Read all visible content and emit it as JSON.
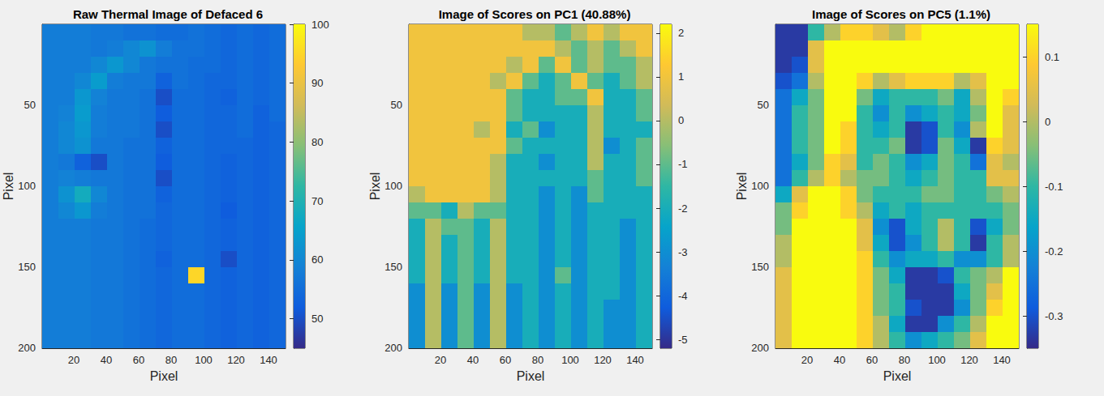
{
  "chart_data": [
    {
      "type": "heatmap",
      "title": "Raw Thermal Image of Defaced 6",
      "xlabel": "Pixel",
      "ylabel": "Pixel",
      "xlim": [
        0.5,
        150.5
      ],
      "xticks": [
        20,
        40,
        60,
        80,
        100,
        120,
        140
      ],
      "ylim": [
        0.5,
        200.5
      ],
      "yticks": [
        50,
        100,
        150,
        200
      ],
      "x": [
        5.5,
        15.5,
        25.5,
        35.5,
        45.5,
        55.5,
        65.5,
        75.5,
        85.5,
        95.5,
        105.5,
        115.5,
        125.5,
        135.5,
        145.5
      ],
      "y": [
        5.5,
        15.5,
        25.5,
        35.5,
        45.5,
        55.5,
        65.5,
        75.5,
        85.5,
        95.5,
        105.5,
        115.5,
        125.5,
        135.5,
        145.5,
        155.5,
        165.5,
        175.5,
        185.5,
        195.5
      ],
      "cells": [
        [
          58,
          58,
          58,
          57,
          57,
          56,
          56,
          55,
          55,
          56,
          55,
          54,
          55,
          54,
          55
        ],
        [
          58,
          58,
          58,
          57,
          58,
          60,
          62,
          58,
          56,
          56,
          55,
          54,
          55,
          54,
          55
        ],
        [
          58,
          58,
          58,
          60,
          63,
          60,
          57,
          56,
          56,
          55,
          55,
          54,
          55,
          54,
          55
        ],
        [
          58,
          58,
          60,
          64,
          58,
          57,
          57,
          53,
          56,
          55,
          54,
          54,
          55,
          54,
          55
        ],
        [
          58,
          58,
          63,
          59,
          57,
          57,
          56,
          50,
          55,
          55,
          54,
          53,
          55,
          54,
          55
        ],
        [
          58,
          59,
          64,
          58,
          57,
          57,
          56,
          52,
          55,
          55,
          54,
          54,
          55,
          53,
          55
        ],
        [
          58,
          60,
          63,
          58,
          57,
          57,
          56,
          50,
          55,
          55,
          54,
          54,
          55,
          53,
          54
        ],
        [
          58,
          60,
          62,
          57,
          57,
          56,
          56,
          53,
          55,
          55,
          54,
          54,
          54,
          53,
          54
        ],
        [
          58,
          57,
          53,
          50,
          57,
          56,
          56,
          52,
          55,
          55,
          54,
          53,
          54,
          53,
          54
        ],
        [
          58,
          59,
          58,
          57,
          57,
          56,
          56,
          50,
          55,
          55,
          54,
          53,
          54,
          53,
          54
        ],
        [
          58,
          62,
          68,
          60,
          57,
          56,
          56,
          53,
          55,
          55,
          54,
          53,
          54,
          53,
          54
        ],
        [
          58,
          60,
          63,
          58,
          57,
          56,
          56,
          54,
          55,
          55,
          54,
          52,
          54,
          53,
          54
        ],
        [
          58,
          58,
          58,
          57,
          57,
          56,
          55,
          54,
          55,
          55,
          54,
          53,
          54,
          53,
          54
        ],
        [
          58,
          58,
          58,
          57,
          57,
          56,
          55,
          54,
          55,
          55,
          54,
          53,
          54,
          53,
          54
        ],
        [
          58,
          58,
          58,
          57,
          57,
          56,
          55,
          53,
          55,
          55,
          54,
          50,
          54,
          53,
          54
        ],
        [
          58,
          58,
          58,
          57,
          57,
          56,
          55,
          54,
          55,
          95,
          54,
          53,
          54,
          53,
          54
        ],
        [
          58,
          58,
          58,
          57,
          57,
          56,
          55,
          54,
          55,
          55,
          54,
          53,
          54,
          53,
          54
        ],
        [
          58,
          58,
          58,
          57,
          57,
          56,
          55,
          54,
          55,
          55,
          54,
          53,
          54,
          53,
          54
        ],
        [
          58,
          58,
          58,
          57,
          57,
          56,
          55,
          54,
          55,
          55,
          54,
          53,
          54,
          53,
          54
        ],
        [
          58,
          58,
          58,
          57,
          57,
          56,
          55,
          54,
          55,
          55,
          54,
          53,
          54,
          53,
          54
        ]
      ],
      "colorbar": {
        "range": [
          45,
          100
        ],
        "ticks": [
          50,
          60,
          70,
          80,
          90,
          100
        ]
      }
    },
    {
      "type": "heatmap",
      "title": "Image of Scores on PC1 (40.88%)",
      "xlabel": "Pixel",
      "ylabel": "Pixel",
      "xlim": [
        0.5,
        150.5
      ],
      "xticks": [
        20,
        40,
        60,
        80,
        100,
        120,
        140
      ],
      "ylim": [
        0.5,
        200.5
      ],
      "yticks": [
        50,
        100,
        150,
        200
      ],
      "x": [
        5.5,
        15.5,
        25.5,
        35.5,
        45.5,
        55.5,
        65.5,
        75.5,
        85.5,
        95.5,
        105.5,
        115.5,
        125.5,
        135.5,
        145.5
      ],
      "y": [
        5.5,
        15.5,
        25.5,
        35.5,
        45.5,
        55.5,
        65.5,
        75.5,
        85.5,
        95.5,
        105.5,
        115.5,
        125.5,
        135.5,
        145.5,
        155.5,
        165.5,
        175.5,
        185.5,
        195.5
      ],
      "cells": [
        [
          1,
          1,
          1,
          1,
          1,
          1,
          1,
          0,
          0,
          -1,
          0,
          1,
          0,
          1,
          1
        ],
        [
          1,
          1,
          1,
          1,
          1,
          1,
          1,
          1,
          1,
          0,
          -1,
          0,
          -1,
          0,
          1
        ],
        [
          1,
          1,
          1,
          1,
          1,
          1,
          0,
          1,
          -1,
          1,
          -1,
          0,
          -1,
          -1,
          0
        ],
        [
          1,
          1,
          1,
          1,
          1,
          0,
          1,
          -1,
          -2,
          -1,
          1,
          -1,
          -2,
          -1,
          0
        ],
        [
          1,
          1,
          1,
          1,
          1,
          1,
          -1,
          -2,
          -2,
          -1,
          -1,
          1,
          -2,
          -2,
          -1
        ],
        [
          1,
          1,
          1,
          1,
          1,
          1,
          -1,
          -2,
          -2,
          -2,
          -2,
          0,
          -2,
          -2,
          -1
        ],
        [
          1,
          1,
          1,
          1,
          0,
          1,
          -2,
          -1,
          -3,
          -2,
          -2,
          0,
          -2,
          -2,
          -2
        ],
        [
          1,
          1,
          1,
          1,
          1,
          1,
          -1,
          -2,
          -2,
          -2,
          -2,
          0,
          -3,
          -2,
          -1
        ],
        [
          1,
          1,
          1,
          1,
          1,
          0,
          -2,
          -2,
          -3,
          -2,
          -2,
          0,
          -2,
          -2,
          -1
        ],
        [
          1,
          1,
          1,
          1,
          1,
          0,
          -2,
          -2,
          -2,
          -2,
          -2,
          -1,
          -2,
          -2,
          -1
        ],
        [
          0,
          1,
          1,
          1,
          1,
          0,
          -2,
          -2,
          -3,
          -2,
          -3,
          -1,
          -2,
          -2,
          -2
        ],
        [
          -1,
          -1,
          -2,
          0,
          -1,
          -1,
          -2,
          -2,
          -3,
          -2,
          -3,
          -2,
          -2,
          -2,
          -2
        ],
        [
          -2,
          0,
          -1,
          -1,
          -2,
          0,
          -2,
          -2,
          -3,
          -2,
          -3,
          -2,
          -2,
          -3,
          -2
        ],
        [
          -2,
          0,
          -2,
          -1,
          -2,
          0,
          -2,
          -2,
          -3,
          -2,
          -3,
          -2,
          -2,
          -3,
          -2
        ],
        [
          -2,
          0,
          -2,
          -1,
          -2,
          0,
          -2,
          -2,
          -3,
          -2,
          -3,
          -2,
          -2,
          -3,
          -2
        ],
        [
          -2,
          0,
          -2,
          -1,
          -2,
          0,
          -2,
          -2,
          -3,
          -1,
          -3,
          -2,
          -2,
          -3,
          -2
        ],
        [
          -3,
          0,
          -3,
          -1,
          -3,
          0,
          -3,
          -2,
          -3,
          -2,
          -3,
          -2,
          -2,
          -3,
          -2
        ],
        [
          -3,
          0,
          -3,
          -1,
          -3,
          0,
          -3,
          -2,
          -3,
          -2,
          -3,
          -2,
          -3,
          -3,
          -2
        ],
        [
          -3,
          0,
          -3,
          -1,
          -3,
          0,
          -3,
          -2,
          -3,
          -2,
          -3,
          -2,
          -3,
          -3,
          -2
        ],
        [
          -3,
          0,
          -3,
          -1,
          -3,
          0,
          -3,
          -2,
          -3,
          -2,
          -3,
          -2,
          -3,
          -3,
          -2
        ]
      ],
      "colorbar": {
        "range": [
          -5.2,
          2.2
        ],
        "ticks": [
          -5,
          -4,
          -3,
          -2,
          -1,
          0,
          1,
          2
        ]
      }
    },
    {
      "type": "heatmap",
      "title": "Image of Scores on PC5 (1.1%)",
      "xlabel": "Pixel",
      "ylabel": "Pixel",
      "xlim": [
        0.5,
        150.5
      ],
      "xticks": [
        20,
        40,
        60,
        80,
        100,
        120,
        140
      ],
      "ylim": [
        0.5,
        200.5
      ],
      "yticks": [
        50,
        100,
        150,
        200
      ],
      "x": [
        5.5,
        15.5,
        25.5,
        35.5,
        45.5,
        55.5,
        65.5,
        75.5,
        85.5,
        95.5,
        105.5,
        115.5,
        125.5,
        135.5,
        145.5
      ],
      "y": [
        5.5,
        15.5,
        25.5,
        35.5,
        45.5,
        55.5,
        65.5,
        75.5,
        85.5,
        95.5,
        105.5,
        115.5,
        125.5,
        135.5,
        145.5,
        155.5,
        165.5,
        175.5,
        185.5,
        195.5
      ],
      "cells": [
        [
          -0.33,
          -0.33,
          -0.1,
          0.0,
          0.1,
          0.1,
          0.05,
          0.0,
          0.1,
          0.15,
          0.15,
          0.15,
          0.15,
          0.15,
          0.15
        ],
        [
          -0.33,
          -0.33,
          0.05,
          0.15,
          0.15,
          0.15,
          0.15,
          0.15,
          0.15,
          0.15,
          0.15,
          0.15,
          0.15,
          0.15,
          0.15
        ],
        [
          -0.33,
          -0.3,
          0.05,
          0.15,
          0.15,
          0.15,
          0.15,
          0.15,
          0.15,
          0.15,
          0.15,
          0.15,
          0.15,
          0.15,
          0.15
        ],
        [
          -0.3,
          -0.25,
          0.0,
          0.15,
          0.15,
          0.1,
          0.0,
          0.05,
          0.1,
          0.1,
          0.1,
          0.0,
          0.05,
          0.15,
          0.15
        ],
        [
          -0.25,
          -0.15,
          -0.05,
          0.15,
          0.15,
          -0.05,
          -0.15,
          -0.1,
          -0.1,
          -0.1,
          -0.05,
          -0.15,
          0.0,
          0.15,
          0.1
        ],
        [
          -0.25,
          -0.1,
          -0.05,
          0.15,
          0.15,
          -0.1,
          -0.2,
          -0.1,
          -0.2,
          -0.15,
          -0.1,
          -0.15,
          -0.05,
          0.15,
          0.05
        ],
        [
          -0.25,
          -0.1,
          -0.05,
          0.15,
          0.1,
          -0.1,
          -0.15,
          -0.1,
          -0.33,
          -0.3,
          -0.1,
          -0.2,
          0.0,
          0.15,
          0.05
        ],
        [
          -0.25,
          -0.1,
          -0.05,
          0.15,
          0.1,
          -0.1,
          -0.1,
          -0.05,
          -0.33,
          -0.3,
          -0.05,
          -0.15,
          -0.33,
          0.1,
          0.05
        ],
        [
          -0.25,
          -0.15,
          -0.05,
          0.1,
          0.05,
          -0.1,
          -0.05,
          -0.1,
          -0.2,
          -0.15,
          -0.05,
          -0.1,
          -0.25,
          0.05,
          0.0
        ],
        [
          -0.25,
          -0.1,
          0.0,
          0.1,
          0.0,
          -0.05,
          -0.05,
          -0.1,
          -0.15,
          -0.1,
          -0.05,
          -0.1,
          -0.1,
          0.05,
          0.05
        ],
        [
          -0.15,
          0.05,
          0.15,
          0.15,
          0.1,
          -0.05,
          -0.1,
          -0.1,
          -0.1,
          -0.05,
          -0.05,
          -0.1,
          -0.1,
          -0.05,
          0.0
        ],
        [
          -0.05,
          0.1,
          0.15,
          0.15,
          0.1,
          0.0,
          -0.15,
          -0.1,
          -0.15,
          -0.1,
          -0.1,
          -0.1,
          -0.1,
          -0.1,
          -0.05
        ],
        [
          -0.05,
          0.15,
          0.15,
          0.15,
          0.15,
          0.05,
          -0.2,
          -0.3,
          -0.15,
          -0.1,
          0.0,
          -0.1,
          -0.3,
          -0.15,
          -0.05
        ],
        [
          0.0,
          0.15,
          0.15,
          0.15,
          0.15,
          0.05,
          -0.15,
          -0.3,
          -0.2,
          -0.1,
          0.0,
          -0.1,
          -0.33,
          -0.1,
          0.0
        ],
        [
          0.0,
          0.15,
          0.15,
          0.15,
          0.15,
          0.1,
          -0.1,
          -0.2,
          -0.15,
          -0.15,
          -0.1,
          -0.2,
          -0.2,
          -0.1,
          0.0
        ],
        [
          0.05,
          0.15,
          0.15,
          0.15,
          0.15,
          0.1,
          -0.05,
          -0.15,
          -0.33,
          -0.33,
          -0.3,
          -0.1,
          -0.05,
          0.0,
          0.15
        ],
        [
          0.05,
          0.15,
          0.15,
          0.15,
          0.15,
          0.1,
          -0.05,
          -0.1,
          -0.33,
          -0.33,
          -0.33,
          -0.15,
          -0.05,
          0.05,
          0.15
        ],
        [
          0.05,
          0.15,
          0.15,
          0.15,
          0.15,
          0.1,
          -0.05,
          -0.1,
          -0.3,
          -0.33,
          -0.33,
          -0.2,
          -0.05,
          0.1,
          0.15
        ],
        [
          0.05,
          0.15,
          0.15,
          0.15,
          0.15,
          0.1,
          0.0,
          -0.15,
          -0.33,
          -0.33,
          -0.2,
          -0.1,
          0.0,
          0.15,
          0.15
        ],
        [
          0.05,
          0.15,
          0.15,
          0.15,
          0.15,
          0.1,
          0.0,
          -0.1,
          -0.2,
          -0.15,
          -0.1,
          -0.05,
          0.05,
          0.15,
          0.15
        ]
      ],
      "colorbar": {
        "range": [
          -0.35,
          0.15
        ],
        "ticks": [
          -0.3,
          -0.2,
          -0.1,
          0,
          0.1
        ]
      }
    }
  ]
}
